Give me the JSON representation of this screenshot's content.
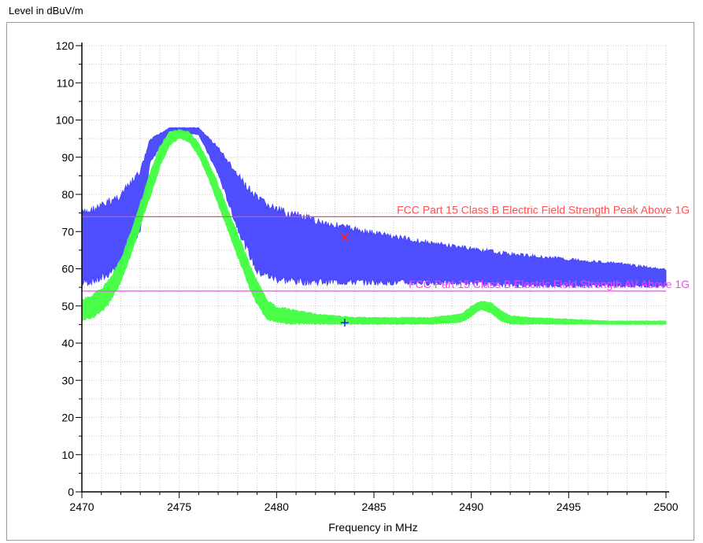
{
  "chart_data": {
    "type": "line",
    "title": "",
    "xlabel": "Frequency in MHz",
    "ylabel": "Level in dBuV/m",
    "xlim": [
      2470,
      2500
    ],
    "ylim": [
      0,
      120
    ],
    "x_ticks": [
      "2470",
      "2475",
      "2480",
      "2485",
      "2490",
      "2495",
      "2500"
    ],
    "y_ticks": [
      "0",
      "10",
      "20",
      "30",
      "40",
      "50",
      "60",
      "70",
      "80",
      "90",
      "100",
      "110",
      "120"
    ],
    "grid": true,
    "series": [
      {
        "color": "#4040ff",
        "style": "filled-band",
        "x": [
          2470,
          2471,
          2472,
          2473,
          2473.5,
          2474.5,
          2476,
          2477,
          2478,
          2479,
          2480,
          2481,
          2482,
          2484,
          2486,
          2488,
          2490,
          2492,
          2494,
          2496,
          2498,
          2500
        ],
        "upper": [
          76,
          78,
          81,
          87,
          95,
          98,
          98,
          93,
          86,
          80,
          77,
          75.5,
          74,
          71.5,
          69.5,
          67.5,
          66,
          64.5,
          63.5,
          62.5,
          61.5,
          60
        ],
        "lower": [
          55,
          56,
          60,
          70,
          88,
          97,
          96,
          85,
          70,
          58,
          56,
          55.5,
          55.5,
          55.5,
          55.5,
          55.5,
          55.5,
          55,
          55,
          55,
          55,
          55
        ]
      },
      {
        "color": "#40ff40",
        "style": "filled-band",
        "x": [
          2470,
          2470.5,
          2471,
          2471.5,
          2472,
          2472.5,
          2473,
          2473.5,
          2474,
          2474.5,
          2475,
          2475.5,
          2476,
          2476.5,
          2477,
          2477.5,
          2478,
          2478.5,
          2479,
          2479.5,
          2480,
          2480.5,
          2481,
          2482,
          2483,
          2484,
          2486,
          2488,
          2489.5,
          2490,
          2490.5,
          2491,
          2491.5,
          2492,
          2493,
          2495,
          2497,
          2500
        ],
        "upper": [
          52,
          53,
          55,
          58,
          63,
          70,
          78,
          86,
          93,
          97,
          97.5,
          97,
          94,
          89,
          83,
          76,
          70,
          63,
          57,
          52,
          50,
          49.5,
          49,
          48,
          47.5,
          47,
          47,
          47,
          48,
          50,
          51.5,
          51,
          49,
          47.5,
          47,
          46.5,
          46,
          46
        ],
        "lower": [
          46,
          46.5,
          48,
          51,
          56,
          63,
          71,
          79,
          87,
          93,
          95,
          94,
          90,
          84,
          77,
          70,
          63,
          56,
          50,
          46,
          45.5,
          45,
          45,
          45,
          45,
          45,
          45,
          45,
          45.5,
          47,
          49,
          48,
          46,
          45,
          45,
          45,
          45,
          45
        ]
      }
    ],
    "limit_lines": [
      {
        "label": "FCC Part 15 Class B Electric Field Strength Peak Above 1G",
        "value": 74,
        "color": "#ff5050"
      },
      {
        "label": "FCC Part 15 Class B Electric Field Strength AV Above 1G",
        "value": 54,
        "color": "#ff40ff"
      }
    ],
    "markers": [
      {
        "symbol": "x",
        "x": 2483.5,
        "y": 68.5,
        "color": "#ff2020"
      },
      {
        "symbol": "+",
        "x": 2483.5,
        "y": 45.5,
        "color": "#2020ff"
      }
    ]
  }
}
